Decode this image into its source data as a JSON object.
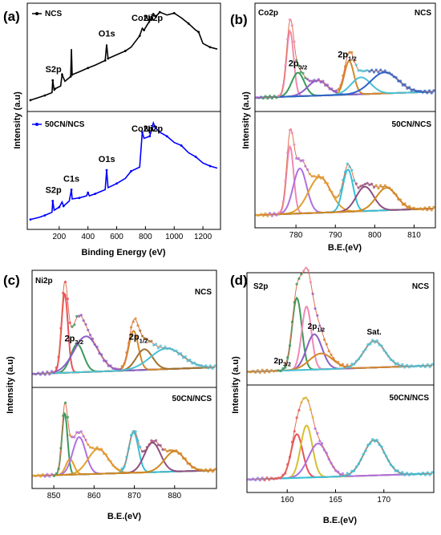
{
  "chart_data": [
    {
      "panel": "(a)",
      "type": "line",
      "xlabel": "Binding Energy (eV)",
      "ylabel": "Intensity (a.u)",
      "xlim": [
        0,
        1300
      ],
      "xticks": [
        200,
        400,
        600,
        800,
        1000,
        1200
      ],
      "series": [
        {
          "name": "NCS",
          "color": "#000000",
          "x": [
            0,
            60,
            100,
            150,
            155,
            165,
            170,
            210,
            220,
            240,
            280,
            285,
            290,
            340,
            400,
            450,
            520,
            530,
            540,
            600,
            660,
            700,
            760,
            778,
            790,
            830,
            855,
            870,
            900,
            950,
            1000,
            1050,
            1100,
            1150,
            1170,
            1200,
            1250,
            1300
          ],
          "y": [
            0.06,
            0.09,
            0.11,
            0.14,
            0.27,
            0.16,
            0.18,
            0.21,
            0.33,
            0.26,
            0.31,
            0.6,
            0.33,
            0.36,
            0.4,
            0.43,
            0.48,
            0.65,
            0.5,
            0.54,
            0.58,
            0.62,
            0.74,
            0.82,
            0.8,
            0.9,
            0.97,
            0.94,
            0.99,
            0.96,
            0.98,
            0.93,
            0.87,
            0.8,
            0.78,
            0.66,
            0.62,
            0.6
          ]
        },
        {
          "name": "50CN/NCS",
          "color": "#0000ff",
          "x": [
            0,
            60,
            100,
            150,
            155,
            165,
            200,
            220,
            230,
            270,
            285,
            290,
            340,
            390,
            400,
            410,
            450,
            520,
            530,
            540,
            600,
            660,
            700,
            760,
            778,
            790,
            830,
            855,
            870,
            900,
            950,
            1000,
            1050,
            1100,
            1150,
            1200,
            1250,
            1300
          ],
          "y": [
            0.05,
            0.07,
            0.09,
            0.12,
            0.23,
            0.14,
            0.17,
            0.22,
            0.18,
            0.23,
            0.34,
            0.25,
            0.26,
            0.28,
            0.31,
            0.28,
            0.3,
            0.34,
            0.53,
            0.36,
            0.4,
            0.45,
            0.52,
            0.56,
            0.9,
            0.84,
            0.86,
            0.99,
            0.94,
            0.9,
            0.86,
            0.8,
            0.77,
            0.7,
            0.66,
            0.6,
            0.57,
            0.55
          ]
        }
      ],
      "annotations": {
        "NCS": [
          {
            "text": "S2p",
            "x": 160
          },
          {
            "text": "O1s",
            "x": 531
          },
          {
            "text": "Co2p",
            "x": 780
          },
          {
            "text": "Ni2p",
            "x": 855
          }
        ],
        "50CN/NCS": [
          {
            "text": "S2p",
            "x": 160
          },
          {
            "text": "C1s",
            "x": 285
          },
          {
            "text": "O1s",
            "x": 531
          },
          {
            "text": "Co2p",
            "x": 780
          },
          {
            "text": "Ni2p",
            "x": 855
          }
        ]
      }
    },
    {
      "panel": "(b)",
      "type": "line",
      "title": "Co2p",
      "xlabel": "B.E.(eV)",
      "ylabel": "Intensity (a.u)",
      "xlim": [
        770,
        815
      ],
      "xticks": [
        780,
        790,
        800,
        810
      ],
      "subplots": [
        {
          "label": "NCS",
          "peak_labels": [
            {
              "text": "2p",
              "sub": "3/2",
              "x": 780.5
            },
            {
              "text": "2p",
              "sub": "1/2",
              "x": 793
            }
          ],
          "components": [
            {
              "center": 778.5,
              "width": 0.9,
              "height": 0.78,
              "color": "#f08ab4"
            },
            {
              "center": 780.5,
              "width": 1.6,
              "height": 0.28,
              "color": "#3a9a5a"
            },
            {
              "center": 785.5,
              "width": 2.5,
              "height": 0.18,
              "color": "#8e5dc8"
            },
            {
              "center": 793.5,
              "width": 1.2,
              "height": 0.4,
              "color": "#d4882c"
            },
            {
              "center": 796.5,
              "width": 2.5,
              "height": 0.2,
              "color": "#4cc1d4"
            },
            {
              "center": 802.5,
              "width": 3.5,
              "height": 0.25,
              "color": "#2f62c8"
            }
          ]
        },
        {
          "label": "50CN/NCS",
          "components": [
            {
              "center": 778.5,
              "width": 0.9,
              "height": 0.72,
              "color": "#f08ab4"
            },
            {
              "center": 781.0,
              "width": 1.7,
              "height": 0.48,
              "color": "#b070e0"
            },
            {
              "center": 786.0,
              "width": 2.8,
              "height": 0.38,
              "color": "#e0a030"
            },
            {
              "center": 793.2,
              "width": 1.3,
              "height": 0.45,
              "color": "#38c0d8"
            },
            {
              "center": 797.5,
              "width": 2.2,
              "height": 0.26,
              "color": "#8e4f80"
            },
            {
              "center": 803.0,
              "width": 2.6,
              "height": 0.24,
              "color": "#d08a20"
            }
          ]
        }
      ]
    },
    {
      "panel": "(c)",
      "type": "line",
      "title": "Ni2p",
      "xlabel": "B.E.(eV)",
      "ylabel": "Intensity (a.u)",
      "xlim": [
        845,
        890
      ],
      "xticks": [
        850,
        860,
        870,
        880
      ],
      "subplots": [
        {
          "label": "NCS",
          "peak_labels": [
            {
              "text": "2p",
              "sub": "3/2",
              "x": 855
            },
            {
              "text": "2p",
              "sub": "1/2",
              "x": 871
            }
          ],
          "components": [
            {
              "center": 852.7,
              "width": 0.8,
              "height": 0.85,
              "color": "#e8525c"
            },
            {
              "center": 855.8,
              "width": 1.6,
              "height": 0.3,
              "color": "#3a9a5a"
            },
            {
              "center": 858.0,
              "width": 3.0,
              "height": 0.38,
              "color": "#8e5dc8"
            },
            {
              "center": 869.8,
              "width": 1.2,
              "height": 0.42,
              "color": "#d4882c"
            },
            {
              "center": 872.5,
              "width": 2.0,
              "height": 0.22,
              "color": "#a07030"
            },
            {
              "center": 878.0,
              "width": 4.0,
              "height": 0.22,
              "color": "#4cc1d4"
            }
          ]
        },
        {
          "label": "50CN/NCS",
          "components": [
            {
              "center": 852.7,
              "width": 0.7,
              "height": 0.8,
              "color": "#3a9a5a"
            },
            {
              "center": 854.0,
              "width": 1.0,
              "height": 0.2,
              "color": "#e0a030"
            },
            {
              "center": 856.3,
              "width": 1.6,
              "height": 0.48,
              "color": "#b070e0"
            },
            {
              "center": 861.0,
              "width": 2.5,
              "height": 0.32,
              "color": "#e0a030"
            },
            {
              "center": 869.8,
              "width": 1.2,
              "height": 0.52,
              "color": "#38c0d8"
            },
            {
              "center": 874.5,
              "width": 2.0,
              "height": 0.38,
              "color": "#8e4f80"
            },
            {
              "center": 880.0,
              "width": 2.5,
              "height": 0.26,
              "color": "#d08a20"
            }
          ]
        }
      ]
    },
    {
      "panel": "(d)",
      "type": "line",
      "title": "S2p",
      "xlabel": "B.E.(eV)",
      "ylabel": "Intensity (a.u)",
      "xlim": [
        156,
        175
      ],
      "xticks": [
        160,
        165,
        170
      ],
      "subplots": [
        {
          "label": "NCS",
          "peak_labels": [
            {
              "text": "2p",
              "sub": "3/2",
              "x": 159.5
            },
            {
              "text": "2p",
              "sub": "1/2",
              "x": 163
            },
            {
              "text": "Sat.",
              "sub": "",
              "x": 169
            }
          ],
          "components": [
            {
              "center": 161.0,
              "width": 0.5,
              "height": 0.82,
              "color": "#3a9a5a"
            },
            {
              "center": 162.0,
              "width": 0.5,
              "height": 0.72,
              "color": "#f08ab4"
            },
            {
              "center": 162.8,
              "width": 0.8,
              "height": 0.4,
              "color": "#8e5dc8"
            },
            {
              "center": 163.5,
              "width": 1.2,
              "height": 0.18,
              "color": "#d4882c"
            },
            {
              "center": 169.0,
              "width": 1.1,
              "height": 0.3,
              "color": "#4cc1d4"
            }
          ]
        },
        {
          "label": "50CN/NCS",
          "components": [
            {
              "center": 161.0,
              "width": 0.6,
              "height": 0.52,
              "color": "#e8525c"
            },
            {
              "center": 162.0,
              "width": 0.6,
              "height": 0.62,
              "color": "#d4c030"
            },
            {
              "center": 163.2,
              "width": 1.0,
              "height": 0.4,
              "color": "#b070e0"
            },
            {
              "center": 169.0,
              "width": 1.1,
              "height": 0.42,
              "color": "#38c0d8"
            }
          ]
        }
      ]
    }
  ]
}
